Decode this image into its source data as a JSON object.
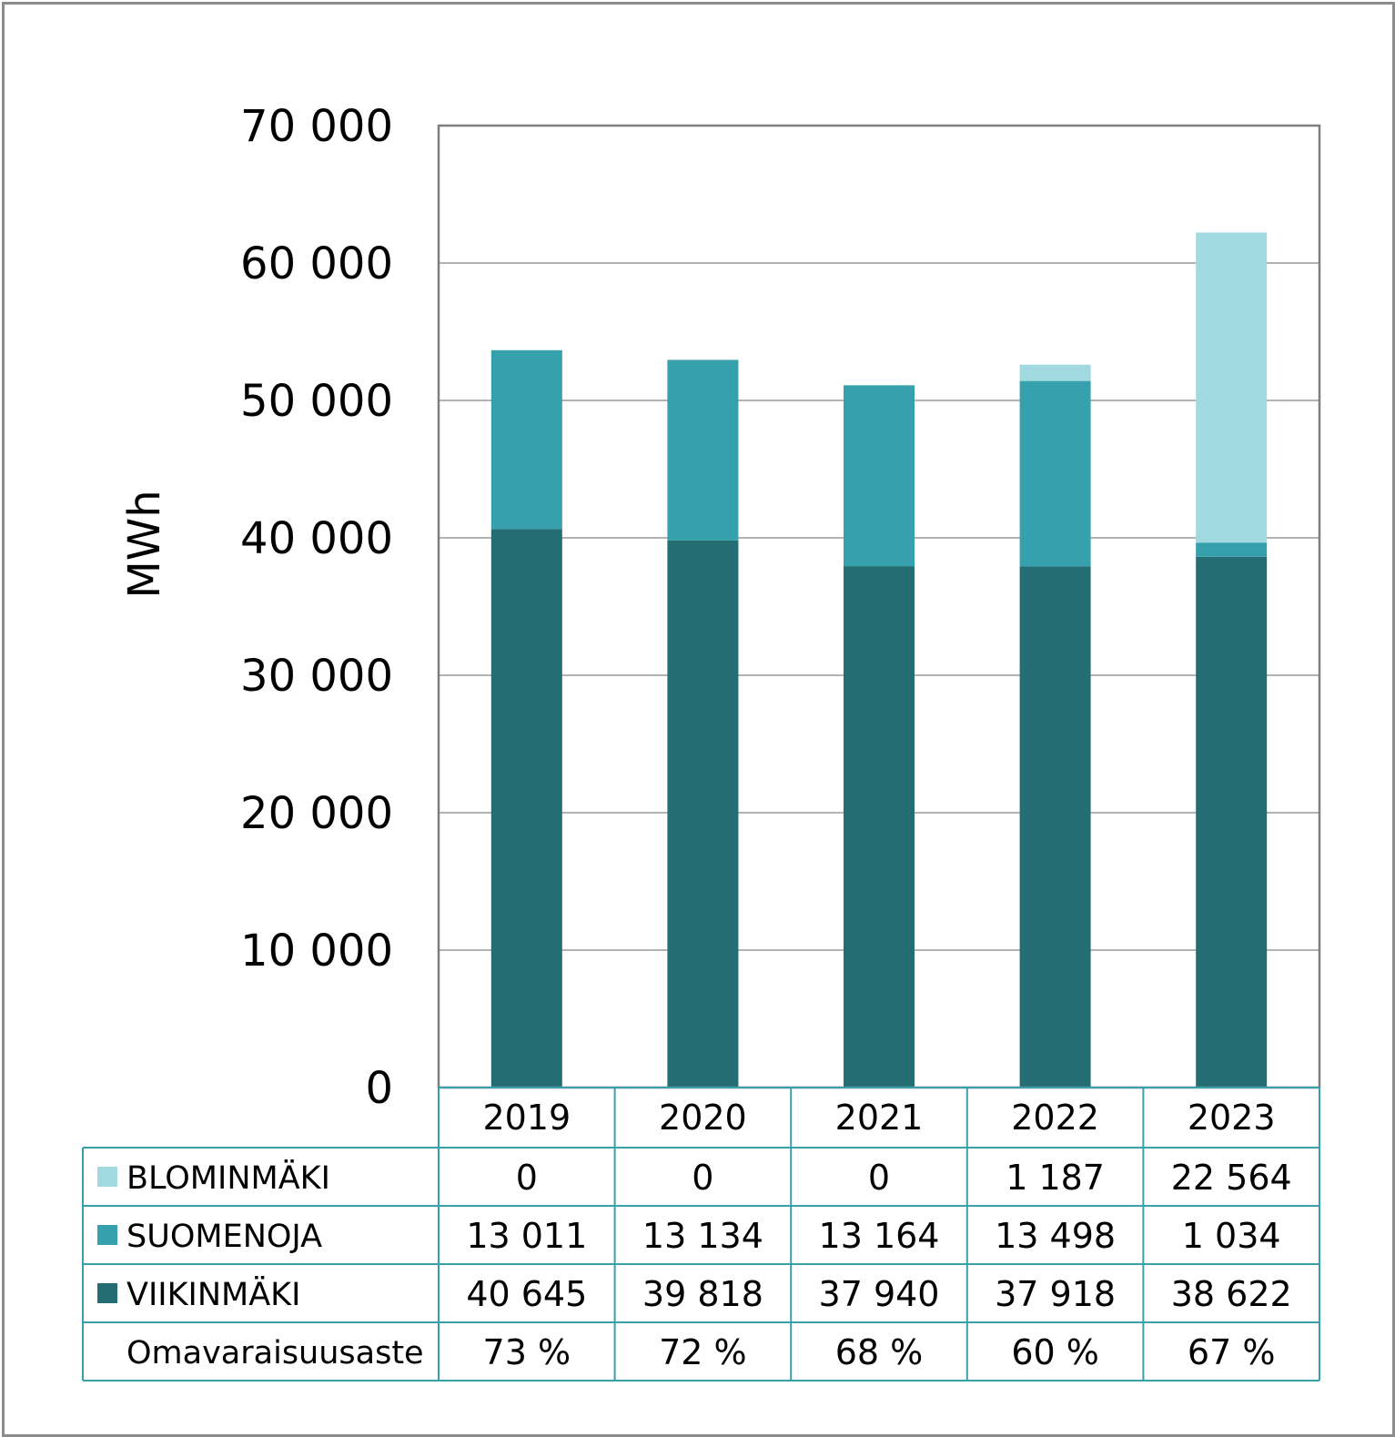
{
  "chart_data": {
    "type": "bar",
    "stacked": true,
    "ylabel": "MWh",
    "ylim": [
      0,
      70000
    ],
    "yticks": [
      0,
      10000,
      20000,
      30000,
      40000,
      50000,
      60000,
      70000
    ],
    "ytick_labels": [
      "0",
      "10 000",
      "20 000",
      "30 000",
      "40 000",
      "50 000",
      "60 000",
      "70 000"
    ],
    "grid": true,
    "legend": "data-table",
    "categories": [
      "2019",
      "2020",
      "2021",
      "2022",
      "2023"
    ],
    "series": [
      {
        "name": "VIIKINMÄKI",
        "color": "#246d73",
        "values": [
          40645,
          39818,
          37940,
          37918,
          38622
        ],
        "labels": [
          "40 645",
          "39 818",
          "37 940",
          "37 918",
          "38 622"
        ]
      },
      {
        "name": "SUOMENOJA",
        "color": "#36a0ac",
        "values": [
          13011,
          13134,
          13164,
          13498,
          1034
        ],
        "labels": [
          "13 011",
          "13 134",
          "13 164",
          "13 498",
          "1 034"
        ]
      },
      {
        "name": "BLOMINMÄKI",
        "color": "#a1d9e0",
        "values": [
          0,
          0,
          0,
          1187,
          22564
        ],
        "labels": [
          "0",
          "0",
          "0",
          "1 187",
          "22 564"
        ]
      }
    ],
    "extra_row": {
      "label": "Omavaraisuusaste",
      "values": [
        "73 %",
        "72 %",
        "68 %",
        "60 %",
        "67 %"
      ]
    }
  }
}
